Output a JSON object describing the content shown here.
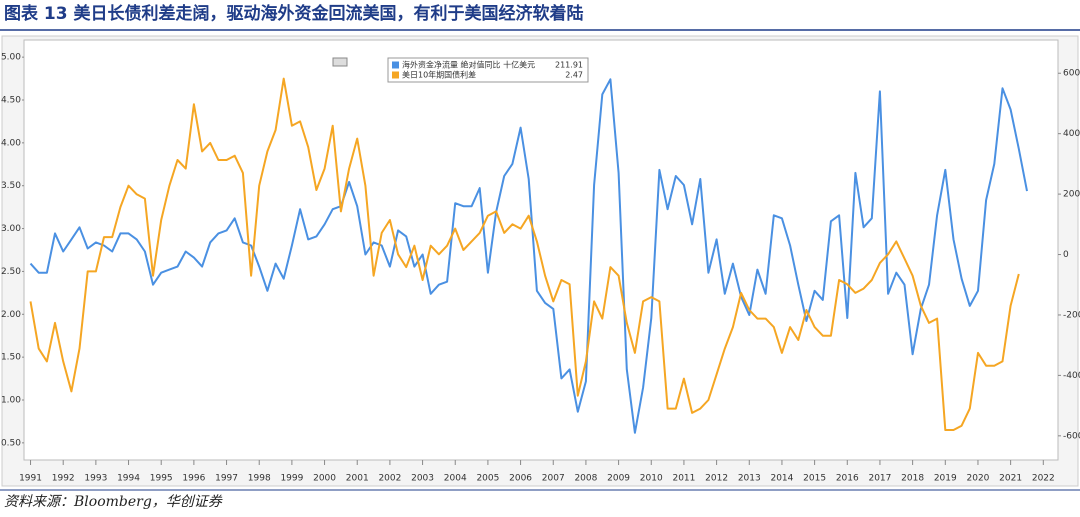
{
  "chart_data": {
    "type": "line",
    "title": "图表 13 美日长债利差走阔，驱动海外资金回流美国，有利于美国经济软着陆",
    "source": "资料来源：Bloomberg，华创证券",
    "x": [
      1991,
      1991.25,
      1991.5,
      1991.75,
      1992,
      1992.25,
      1992.5,
      1992.75,
      1993,
      1993.25,
      1993.5,
      1993.75,
      1994,
      1994.25,
      1994.5,
      1994.75,
      1995,
      1995.25,
      1995.5,
      1995.75,
      1996,
      1996.25,
      1996.5,
      1996.75,
      1997,
      1997.25,
      1997.5,
      1997.75,
      1998,
      1998.25,
      1998.5,
      1998.75,
      1999,
      1999.25,
      1999.5,
      1999.75,
      2000,
      2000.25,
      2000.5,
      2000.75,
      2001,
      2001.25,
      2001.5,
      2001.75,
      2002,
      2002.25,
      2002.5,
      2002.75,
      2003,
      2003.25,
      2003.5,
      2003.75,
      2004,
      2004.25,
      2004.5,
      2004.75,
      2005,
      2005.25,
      2005.5,
      2005.75,
      2006,
      2006.25,
      2006.5,
      2006.75,
      2007,
      2007.25,
      2007.5,
      2007.75,
      2008,
      2008.25,
      2008.5,
      2008.75,
      2009,
      2009.25,
      2009.5,
      2009.75,
      2010,
      2010.25,
      2010.5,
      2010.75,
      2011,
      2011.25,
      2011.5,
      2011.75,
      2012,
      2012.25,
      2012.5,
      2012.75,
      2013,
      2013.25,
      2013.5,
      2013.75,
      2014,
      2014.25,
      2014.5,
      2014.75,
      2015,
      2015.25,
      2015.5,
      2015.75,
      2016,
      2016.25,
      2016.5,
      2016.75,
      2017,
      2017.25,
      2017.5,
      2017.75,
      2018,
      2018.25,
      2018.5,
      2018.75,
      2019,
      2019.25,
      2019.5,
      2019.75,
      2020,
      2020.25,
      2020.5,
      2020.75,
      2021,
      2021.25,
      2021.5
    ],
    "series": [
      {
        "name": "海外资金净流量 絶对值同比 十亿美元",
        "legend_value": "211.91",
        "color": "#4a90e2",
        "axis": "y2",
        "values": [
          -30,
          -60,
          -60,
          70,
          10,
          50,
          90,
          20,
          40,
          30,
          10,
          70,
          70,
          50,
          10,
          -100,
          -60,
          -50,
          -40,
          10,
          -10,
          -40,
          40,
          70,
          80,
          120,
          40,
          30,
          -40,
          -120,
          -30,
          -80,
          30,
          150,
          50,
          60,
          100,
          150,
          160,
          240,
          160,
          0,
          40,
          30,
          -40,
          80,
          60,
          -40,
          0,
          -130,
          -100,
          -90,
          170,
          160,
          160,
          220,
          -60,
          140,
          260,
          300,
          420,
          250,
          -120,
          -160,
          -180,
          -410,
          -380,
          -520,
          -420,
          230,
          530,
          580,
          270,
          -380,
          -590,
          -440,
          -210,
          280,
          150,
          260,
          230,
          100,
          250,
          -60,
          50,
          -130,
          -30,
          -140,
          -200,
          -50,
          -130,
          130,
          120,
          30,
          -100,
          -220,
          -120,
          -150,
          110,
          130,
          -210,
          270,
          90,
          120,
          540,
          -130,
          -60,
          -100,
          -330,
          -180,
          -100,
          130,
          280,
          50,
          -80,
          -170,
          -120,
          180,
          300,
          550,
          480,
          350,
          210
        ]
      },
      {
        "name": "美日10年期国债利差",
        "legend_value": "2.47",
        "color": "#f5a623",
        "values": [
          2.15,
          1.6,
          1.45,
          1.9,
          1.45,
          1.1,
          1.6,
          2.5,
          2.5,
          2.9,
          2.9,
          3.25,
          3.5,
          3.4,
          3.35,
          2.45,
          3.1,
          3.5,
          3.8,
          3.7,
          4.45,
          3.9,
          4.0,
          3.8,
          3.8,
          3.85,
          3.65,
          2.45,
          3.5,
          3.9,
          4.15,
          4.75,
          4.2,
          4.25,
          3.95,
          3.45,
          3.7,
          4.2,
          3.2,
          3.7,
          4.05,
          3.5,
          2.45,
          2.95,
          3.1,
          2.7,
          2.55,
          2.8,
          2.4,
          2.8,
          2.7,
          2.8,
          3.0,
          2.75,
          2.85,
          2.95,
          3.15,
          3.2,
          2.95,
          3.05,
          3.0,
          3.15,
          2.85,
          2.45,
          2.15,
          2.4,
          2.35,
          1.05,
          1.45,
          2.15,
          1.95,
          2.55,
          2.45,
          1.9,
          1.55,
          2.15,
          2.2,
          2.15,
          0.9,
          0.9,
          1.25,
          0.85,
          0.9,
          1.0,
          1.3,
          1.6,
          1.85,
          2.25,
          2.05,
          1.95,
          1.95,
          1.85,
          1.55,
          1.85,
          1.7,
          2.05,
          1.85,
          1.75,
          1.75,
          2.4,
          2.35,
          2.25,
          2.3,
          2.4,
          2.6,
          2.7,
          2.85,
          2.65,
          2.45,
          2.1,
          1.9,
          1.95,
          0.65,
          0.65,
          0.7,
          0.9,
          1.55,
          1.4,
          1.4,
          1.45,
          2.1,
          2.47,
          null
        ]
      }
    ],
    "xlim": [
      1990.8,
      2022.45
    ],
    "xticks": [
      1991,
      1992,
      1993,
      1994,
      1995,
      1996,
      1997,
      1998,
      1999,
      2000,
      2001,
      2002,
      2003,
      2004,
      2005,
      2006,
      2007,
      2008,
      2009,
      2010,
      2011,
      2012,
      2013,
      2014,
      2015,
      2016,
      2017,
      2018,
      2019,
      2020,
      2021,
      2022
    ],
    "ylim": [
      0.3,
      5.2
    ],
    "yticks": [
      {
        "value": 0.5,
        "label": "0.50"
      },
      {
        "value": 1,
        "label": "1.00"
      },
      {
        "value": 1.5,
        "label": "1.50"
      },
      {
        "value": 2,
        "label": "2.00"
      },
      {
        "value": 2.5,
        "label": "2.50"
      },
      {
        "value": 3,
        "label": "3.00"
      },
      {
        "value": 3.5,
        "label": "3.50"
      },
      {
        "value": 4,
        "label": "4.00"
      },
      {
        "value": 4.5,
        "label": "4.50"
      },
      {
        "value": 5,
        "label": "5.00"
      }
    ],
    "y2lim": [
      -680,
      710
    ],
    "y2ticks": [
      -600,
      -400,
      -200,
      0,
      200,
      400,
      600
    ],
    "grid": false
  }
}
